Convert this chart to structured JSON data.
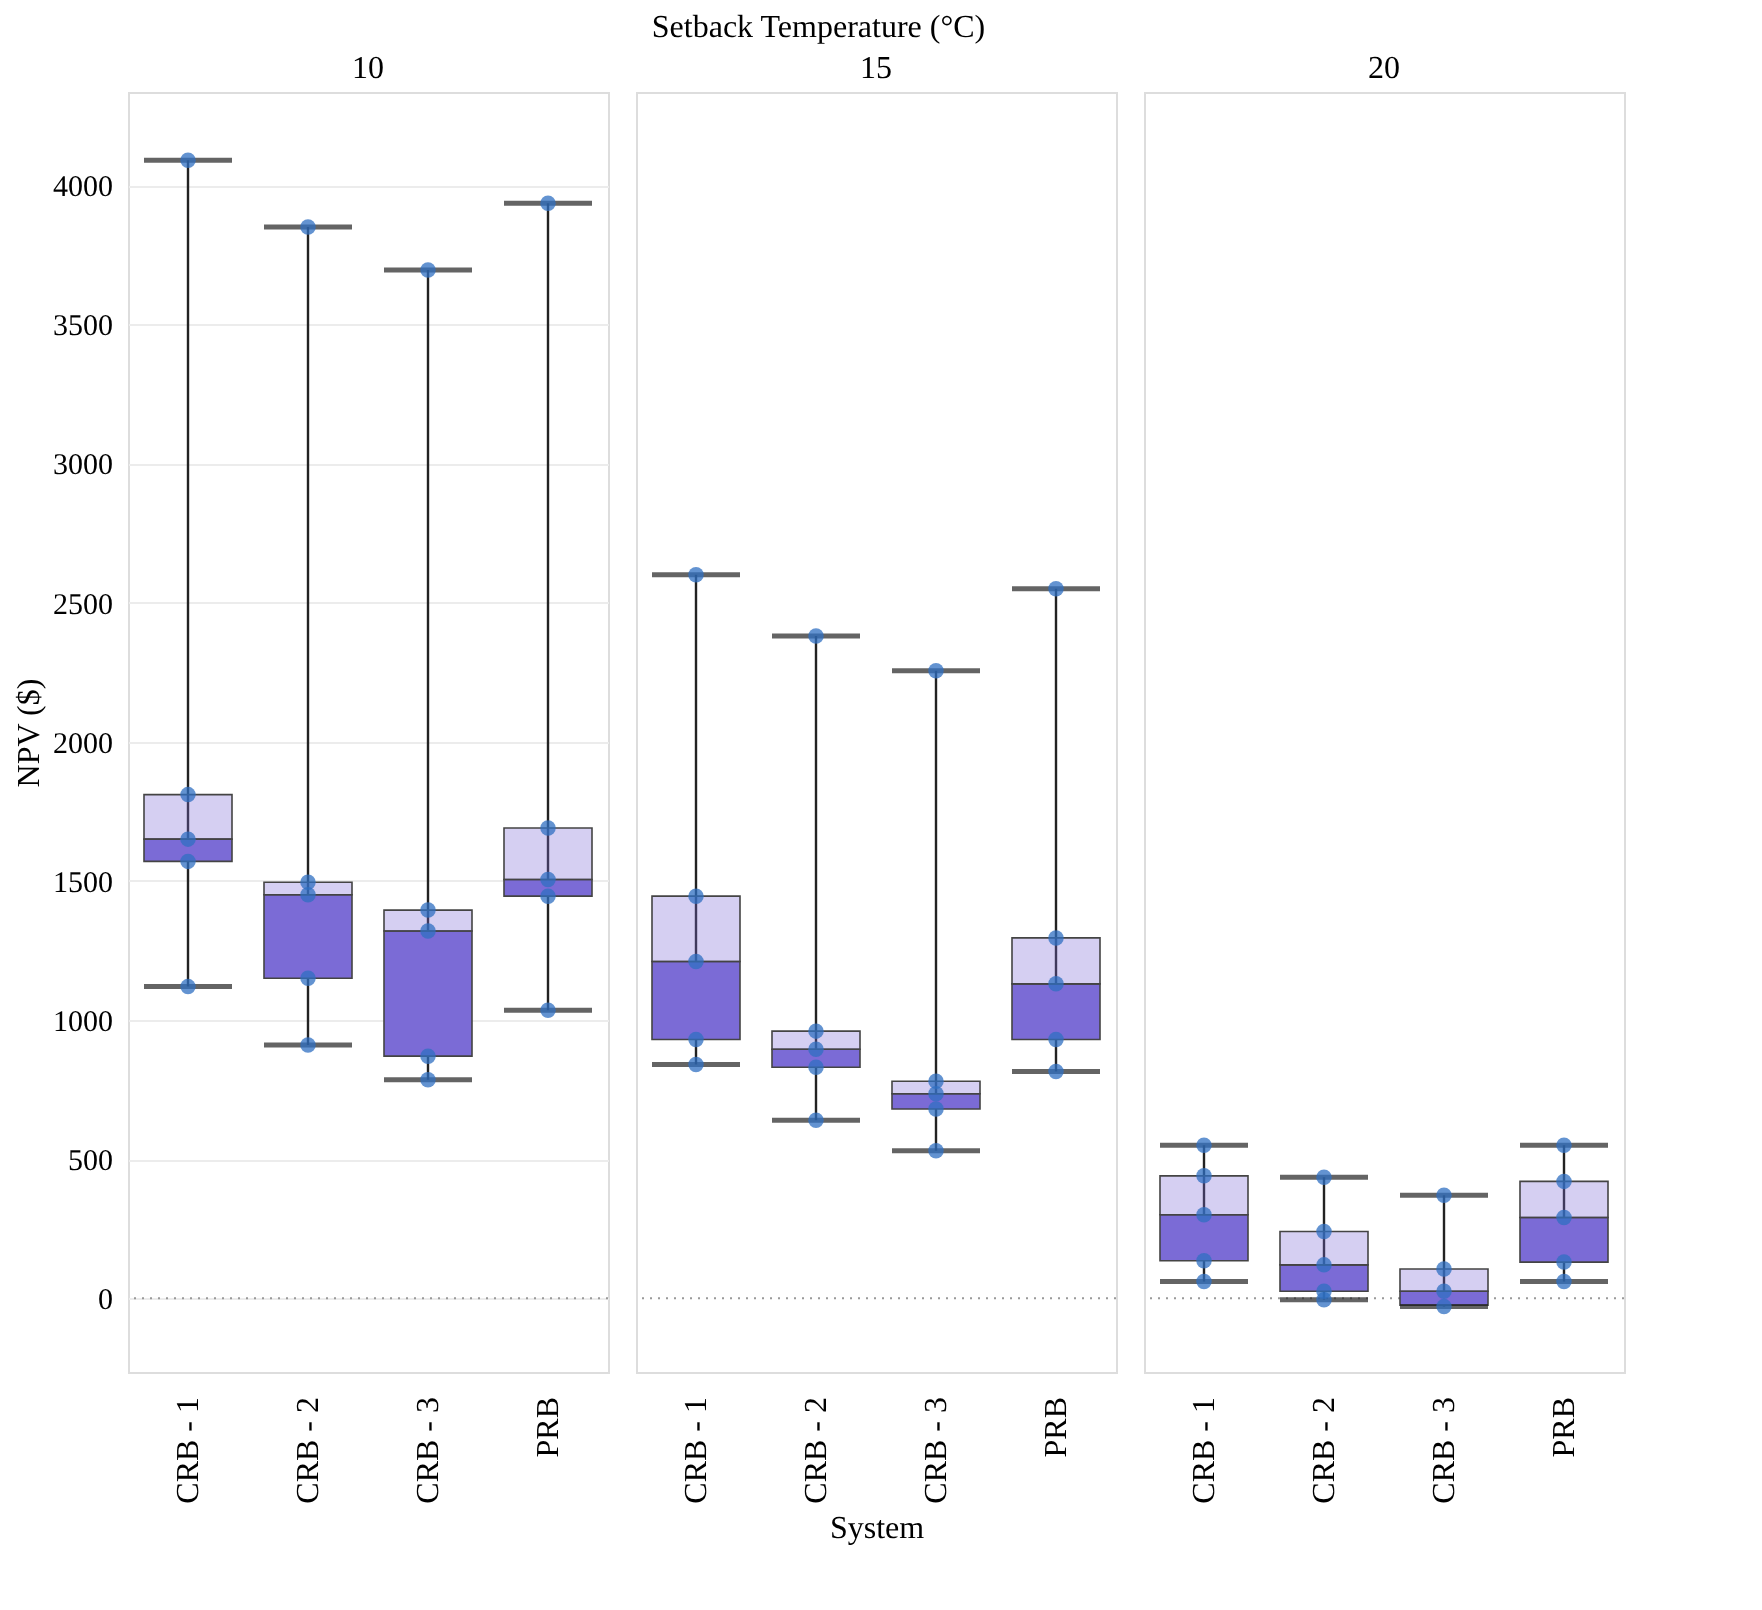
{
  "chart_data": [
    {
      "type": "box",
      "title": "10",
      "ylabel": "NPV ($)",
      "categories": [
        "CRB - 1",
        "CRB - 2",
        "CRB - 3",
        "PRB"
      ],
      "ylim": [
        -265,
        4335
      ],
      "yticks": [
        0,
        500,
        1000,
        1500,
        2000,
        2500,
        3000,
        3500,
        4000
      ],
      "grid": "y",
      "marker": "circle",
      "ref_lines": [
        {
          "axis": "y",
          "value": 0,
          "line_style": "dotted"
        }
      ],
      "series": [
        {
          "color": "#7b6bd6",
          "boxes": [
            {
              "low": 1120,
              "q1": 1570,
              "median": 1650,
              "q3": 1810,
              "high": 4090
            },
            {
              "low": 910,
              "q1": 1150,
              "median": 1450,
              "q3": 1495,
              "high": 3850
            },
            {
              "low": 785,
              "q1": 870,
              "median": 1320,
              "q3": 1395,
              "high": 3695
            },
            {
              "low": 1035,
              "q1": 1445,
              "median": 1505,
              "q3": 1690,
              "high": 3935
            }
          ]
        },
        {
          "type": "scatter",
          "color": "#2f6fc2",
          "x": [
            "CRB - 1",
            "CRB - 1",
            "CRB - 1",
            "CRB - 1",
            "CRB - 1",
            "CRB - 2",
            "CRB - 2",
            "CRB - 2",
            "CRB - 2",
            "CRB - 2",
            "CRB - 3",
            "CRB - 3",
            "CRB - 3",
            "CRB - 3",
            "CRB - 3",
            "PRB",
            "PRB",
            "PRB",
            "PRB",
            "PRB"
          ],
          "values": [
            1120,
            1570,
            1650,
            1810,
            4090,
            910,
            1150,
            1450,
            1495,
            3850,
            785,
            870,
            1320,
            1395,
            3695,
            1035,
            1445,
            1505,
            1690,
            3935
          ]
        }
      ]
    },
    {
      "type": "box",
      "title": "15",
      "xlabel": "System",
      "annotations": [
        "Setback Temperature (°C)"
      ],
      "categories": [
        "CRB - 1",
        "CRB - 2",
        "CRB - 3",
        "PRB"
      ],
      "ylim": [
        -265,
        4335
      ],
      "tick_labels": "x",
      "grid": "y",
      "marker": "circle",
      "ref_lines": [
        {
          "axis": "y",
          "value": 0,
          "line_style": "dotted"
        }
      ],
      "series": [
        {
          "color": "#7b6bd6",
          "boxes": [
            {
              "low": 840,
              "q1": 930,
              "median": 1210,
              "q3": 1445,
              "high": 2600
            },
            {
              "low": 640,
              "q1": 830,
              "median": 895,
              "q3": 960,
              "high": 2380
            },
            {
              "low": 530,
              "q1": 680,
              "median": 735,
              "q3": 780,
              "high": 2255
            },
            {
              "low": 815,
              "q1": 930,
              "median": 1130,
              "q3": 1295,
              "high": 2550
            }
          ]
        },
        {
          "type": "scatter",
          "color": "#2f6fc2",
          "x": [
            "CRB - 1",
            "CRB - 1",
            "CRB - 1",
            "CRB - 1",
            "CRB - 1",
            "CRB - 2",
            "CRB - 2",
            "CRB - 2",
            "CRB - 2",
            "CRB - 2",
            "CRB - 3",
            "CRB - 3",
            "CRB - 3",
            "CRB - 3",
            "CRB - 3",
            "PRB",
            "PRB",
            "PRB",
            "PRB",
            "PRB"
          ],
          "values": [
            840,
            930,
            1210,
            1445,
            2600,
            640,
            830,
            895,
            960,
            2380,
            530,
            680,
            735,
            780,
            2255,
            815,
            930,
            1130,
            1295,
            2550
          ]
        }
      ]
    },
    {
      "type": "box",
      "title": "20",
      "categories": [
        "CRB - 1",
        "CRB - 2",
        "CRB - 3",
        "PRB"
      ],
      "ylim": [
        -265,
        4335
      ],
      "tick_labels": "x",
      "grid": "y",
      "marker": "circle",
      "ref_lines": [
        {
          "axis": "y",
          "value": 0,
          "line_style": "dotted"
        }
      ],
      "series": [
        {
          "color": "#7b6bd6",
          "boxes": [
            {
              "low": 60,
              "q1": 135,
              "median": 300,
              "q3": 440,
              "high": 550
            },
            {
              "low": -5,
              "q1": 25,
              "median": 120,
              "q3": 240,
              "high": 435
            },
            {
              "low": -30,
              "q1": -25,
              "median": 25,
              "q3": 105,
              "high": 370
            },
            {
              "low": 60,
              "q1": 130,
              "median": 290,
              "q3": 420,
              "high": 550
            }
          ]
        },
        {
          "type": "scatter",
          "color": "#2f6fc2",
          "x": [
            "CRB - 1",
            "CRB - 1",
            "CRB - 1",
            "CRB - 1",
            "CRB - 1",
            "CRB - 2",
            "CRB - 2",
            "CRB - 2",
            "CRB - 2",
            "CRB - 2",
            "CRB - 3",
            "CRB - 3",
            "CRB - 3",
            "CRB - 3",
            "CRB - 3",
            "PRB",
            "PRB",
            "PRB",
            "PRB",
            "PRB"
          ],
          "values": [
            60,
            135,
            300,
            440,
            550,
            -5,
            25,
            120,
            240,
            435,
            -30,
            null,
            25,
            105,
            370,
            60,
            130,
            290,
            420,
            550
          ]
        }
      ]
    }
  ]
}
